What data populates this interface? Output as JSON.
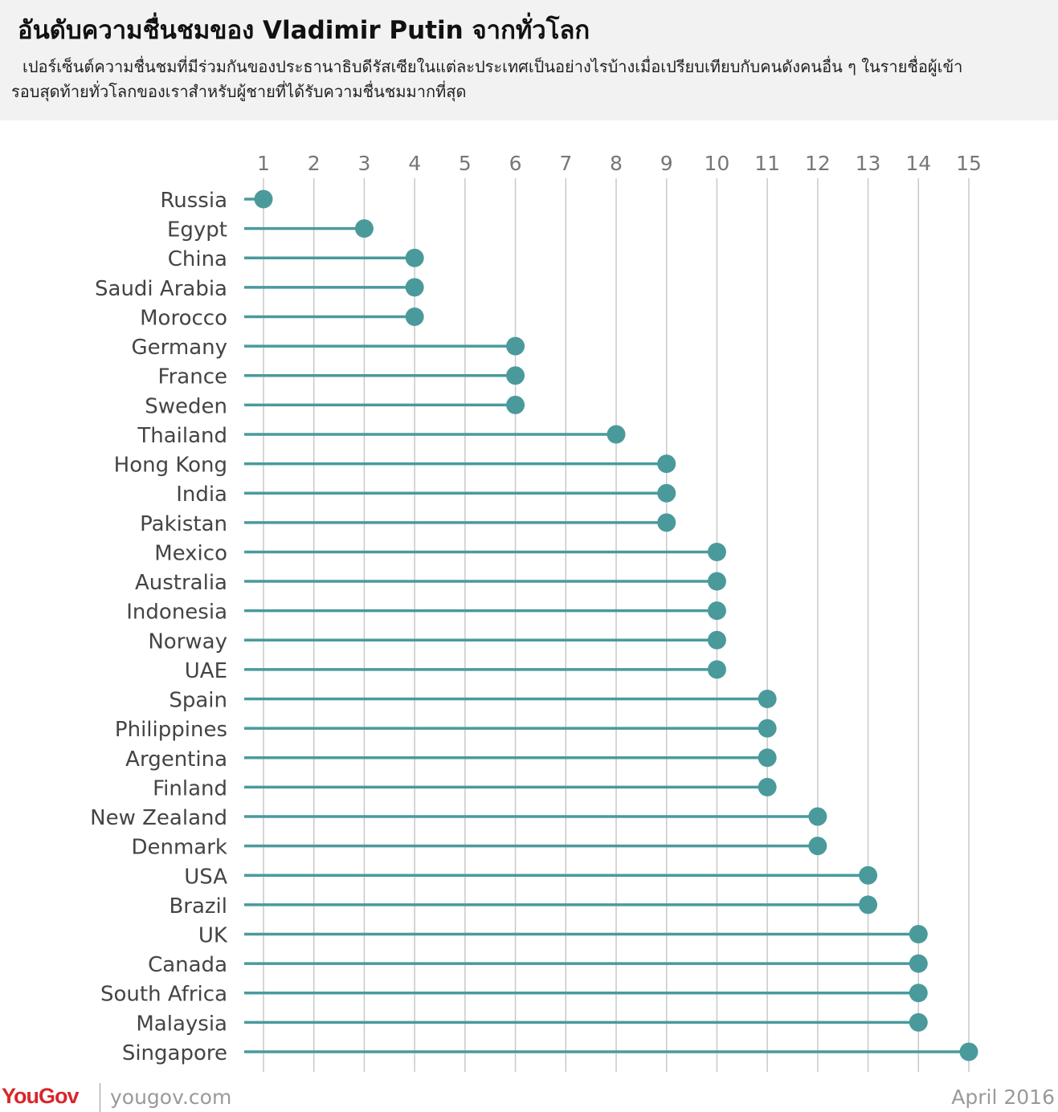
{
  "header": {
    "title": "อันดับความชื่นชมของ Vladimir Putin จากทั่วโลก",
    "subtitle": "เปอร์เซ็นต์ความชื่นชมที่มีร่วมกันของประธานาธิบดีรัสเซียในแต่ละประเทศเป็นอย่างไรบ้างเมื่อเปรียบเทียบกับคนดังคนอื่น ๆ ในรายชื่อผู้เข้ารอบสุดท้ายทั่วโลกของเราสำหรับผู้ชายที่ได้รับความชื่นชมมากที่สุด"
  },
  "colors": {
    "accent": "#4a9a9c",
    "grid": "#c8c8c8",
    "label": "#444444",
    "brand": "#d9262b"
  },
  "chart_data": {
    "type": "scatter",
    "xlim": [
      1,
      15
    ],
    "x_ticks": [
      "1",
      "2",
      "3",
      "4",
      "5",
      "6",
      "7",
      "8",
      "9",
      "10",
      "11",
      "12",
      "13",
      "14",
      "15"
    ],
    "grid": true,
    "categories": [
      "Russia",
      "Egypt",
      "China",
      "Saudi Arabia",
      "Morocco",
      "Germany",
      "France",
      "Sweden",
      "Thailand",
      "Hong Kong",
      "India",
      "Pakistan",
      "Mexico",
      "Australia",
      "Indonesia",
      "Norway",
      "UAE",
      "Spain",
      "Philippines",
      "Argentina",
      "Finland",
      "New Zealand",
      "Denmark",
      "USA",
      "Brazil",
      "UK",
      "Canada",
      "South Africa",
      "Malaysia",
      "Singapore"
    ],
    "values": [
      1,
      3,
      4,
      4,
      4,
      6,
      6,
      6,
      8,
      9,
      9,
      9,
      10,
      10,
      10,
      10,
      10,
      11,
      11,
      11,
      11,
      12,
      12,
      13,
      13,
      14,
      14,
      14,
      14,
      15
    ]
  },
  "footer": {
    "logo": "YouGov",
    "site": "yougov.com",
    "date": "April 2016"
  }
}
